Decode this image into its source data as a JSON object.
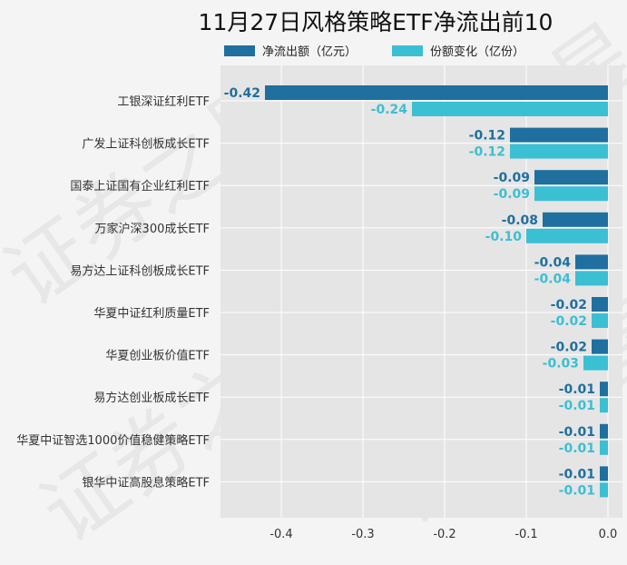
{
  "chart_data": {
    "type": "bar",
    "orientation": "horizontal",
    "title": "11月27日风格策略ETF净流出前10",
    "categories": [
      "工银深证红利ETF",
      "广发上证科创板成长ETF",
      "国泰上证国有企业红利ETF",
      "万家沪深300成长ETF",
      "易方达上证科创板成长ETF",
      "华夏中证红利质量ETF",
      "华夏创业板价值ETF",
      "易方达创业板成长ETF",
      "华夏中证智选1000价值稳健策略ETF",
      "银华中证高股息策略ETF"
    ],
    "series": [
      {
        "name": "净流出额（亿元）",
        "color": "#1f6f9f",
        "values": [
          -0.42,
          -0.12,
          -0.09,
          -0.08,
          -0.04,
          -0.02,
          -0.02,
          -0.01,
          -0.01,
          -0.01
        ],
        "labels": [
          "-0.42",
          "-0.12",
          "-0.09",
          "-0.08",
          "-0.04",
          "-0.02",
          "-0.02",
          "-0.01",
          "-0.01",
          "-0.01"
        ]
      },
      {
        "name": "份额变化（亿份）",
        "color": "#3bbfd3",
        "values": [
          -0.24,
          -0.12,
          -0.09,
          -0.1,
          -0.04,
          -0.02,
          -0.03,
          -0.01,
          -0.01,
          -0.01
        ],
        "labels": [
          "-0.24",
          "-0.12",
          "-0.09",
          "-0.10",
          "-0.04",
          "-0.02",
          "-0.03",
          "-0.01",
          "-0.01",
          "-0.01"
        ]
      }
    ],
    "xlim": [
      -0.47,
      0.0
    ],
    "xticks": [
      -0.4,
      -0.3,
      -0.2,
      -0.1,
      0.0
    ],
    "xtick_labels": [
      "-0.4",
      "-0.3",
      "-0.2",
      "-0.1",
      "0.0"
    ],
    "grid": true,
    "legend_position": "top",
    "plot_background": "#e5e5e5"
  },
  "watermark": "证券之星"
}
